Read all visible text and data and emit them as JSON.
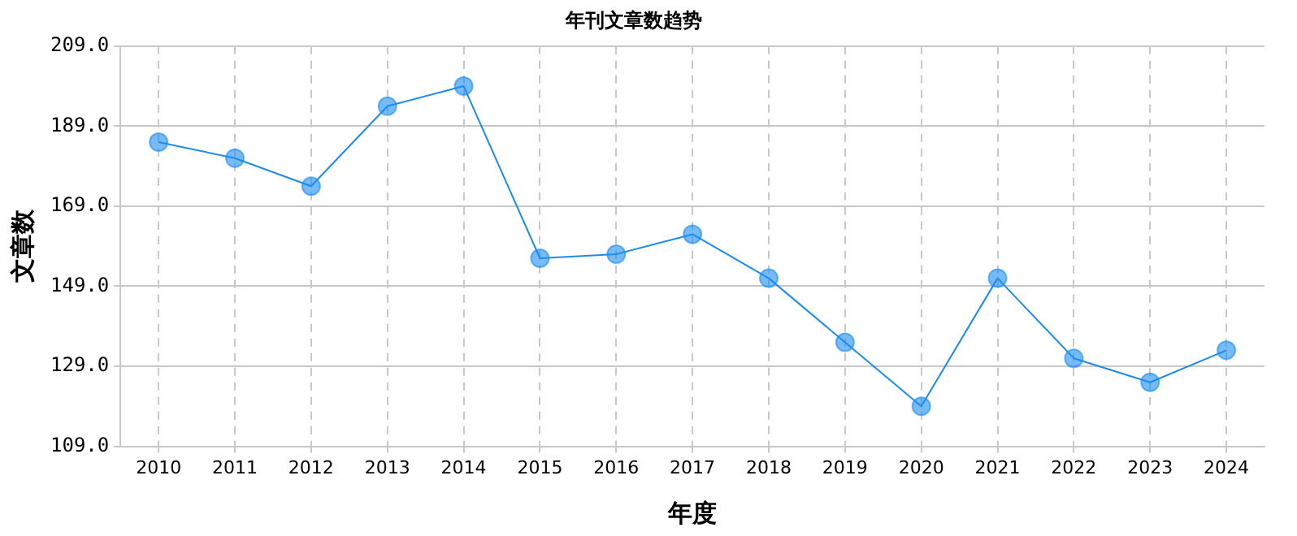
{
  "chart_data": {
    "type": "line",
    "title": "年刊文章数趋势",
    "xlabel": "年度",
    "ylabel": "文章数",
    "categories": [
      "2010",
      "2011",
      "2012",
      "2013",
      "2014",
      "2015",
      "2016",
      "2017",
      "2018",
      "2019",
      "2020",
      "2021",
      "2022",
      "2023",
      "2024"
    ],
    "series": [
      {
        "color": "#1a8cf0",
        "values": [
          185,
          181,
          174,
          194,
          199,
          156,
          157,
          162,
          151,
          135,
          119,
          151,
          131,
          125,
          133
        ]
      }
    ],
    "ylim": [
      109,
      209
    ],
    "yticks": [
      {
        "value": 109,
        "label": "109.0"
      },
      {
        "value": 129,
        "label": "129.0"
      },
      {
        "value": 149,
        "label": "149.0"
      },
      {
        "value": 169,
        "label": "169.0"
      },
      {
        "value": 189,
        "label": "189.0"
      },
      {
        "value": 209,
        "label": "209.0"
      }
    ],
    "grid": true,
    "legend": false,
    "marker": "circle",
    "line_style": "solid"
  }
}
